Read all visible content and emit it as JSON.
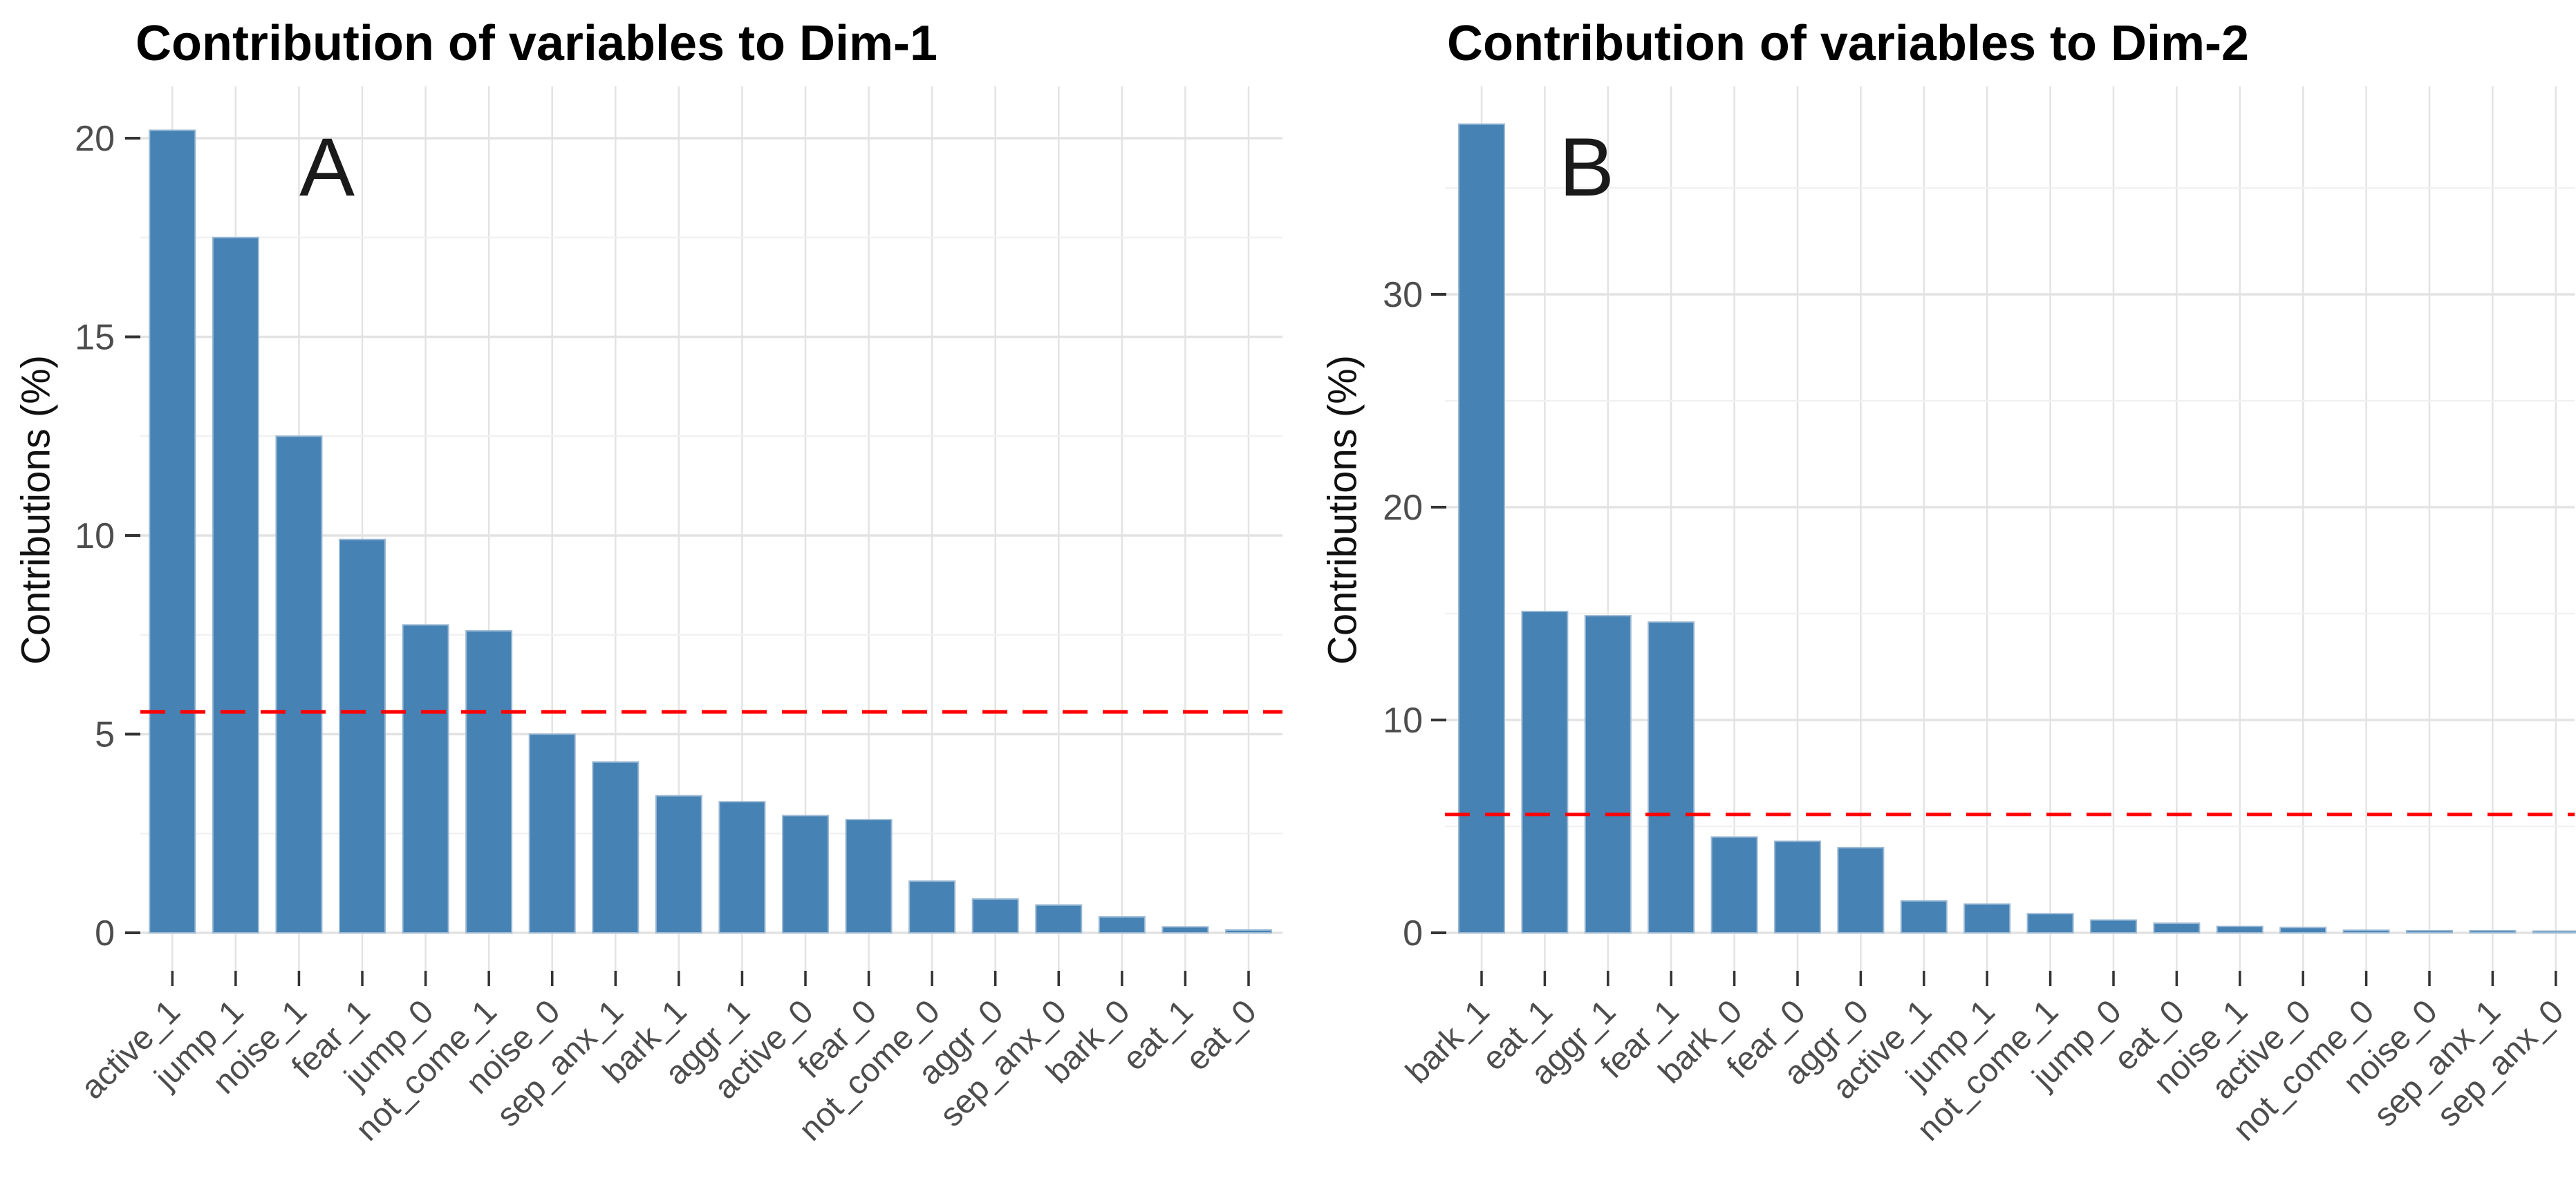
{
  "page": {
    "background": "#FFFFFF",
    "description": "Two-panel bar chart of variable contributions to FAMD/MCA dimensions"
  },
  "colors": {
    "background": "#FFFFFF",
    "bar_fill": "#4682B4",
    "bar_edge": "#9BB9D4",
    "grid_major": "#E3E3E3",
    "grid_minor": "#F1F1F1",
    "axis_text": "#4D4D4D",
    "title_text": "#000000",
    "tick_mark": "#333333",
    "reference_line": "#FF0000"
  },
  "chart_data": [
    {
      "type": "bar",
      "title": "Contribution of variables to Dim-1",
      "panel_label": "A",
      "ylabel": "Contributions (%)",
      "xlabel": "",
      "legend": "none",
      "grid": "horizontal major+minor light gray, vertical per category, white background",
      "categories": [
        "active_1",
        "jump_1",
        "noise_1",
        "fear_1",
        "jump_0",
        "not_come_1",
        "noise_0",
        "sep_anx_1",
        "bark_1",
        "aggr_1",
        "active_0",
        "fear_0",
        "not_come_0",
        "aggr_0",
        "sep_anx_0",
        "bark_0",
        "eat_1",
        "eat_0"
      ],
      "values": [
        20.2,
        17.5,
        12.5,
        9.9,
        7.75,
        7.6,
        5.0,
        4.3,
        3.45,
        3.3,
        2.95,
        2.85,
        1.3,
        0.85,
        0.7,
        0.4,
        0.15,
        0.07
      ],
      "y_ticks": [
        0,
        5,
        10,
        15,
        20
      ],
      "y_minor_gridlines": [
        2.5,
        7.5,
        12.5,
        17.5
      ],
      "ylim": [
        0,
        21.2
      ],
      "x_label_angle": 45,
      "reference_line": {
        "value": 5.56,
        "color": "#FF0000",
        "style": "dashed"
      }
    },
    {
      "type": "bar",
      "title": "Contribution of variables to Dim-2",
      "panel_label": "B",
      "ylabel": "Contributions (%)",
      "xlabel": "",
      "legend": "none",
      "grid": "horizontal major+minor light gray, vertical per category, white background",
      "categories": [
        "bark_1",
        "eat_1",
        "aggr_1",
        "fear_1",
        "bark_0",
        "fear_0",
        "aggr_0",
        "active_1",
        "jump_1",
        "not_come_1",
        "jump_0",
        "eat_0",
        "noise_1",
        "active_0",
        "not_come_0",
        "noise_0",
        "sep_anx_1",
        "sep_anx_0"
      ],
      "values": [
        38.0,
        15.1,
        14.9,
        14.6,
        4.5,
        4.3,
        4.0,
        1.5,
        1.35,
        0.9,
        0.6,
        0.45,
        0.3,
        0.25,
        0.12,
        0.1,
        0.1,
        0.08
      ],
      "y_ticks": [
        0,
        10,
        20,
        30
      ],
      "y_minor_gridlines": [
        5,
        15,
        25,
        35
      ],
      "ylim": [
        0,
        39.9
      ],
      "x_label_angle": 45,
      "reference_line": {
        "value": 5.56,
        "color": "#FF0000",
        "style": "dashed"
      }
    }
  ]
}
